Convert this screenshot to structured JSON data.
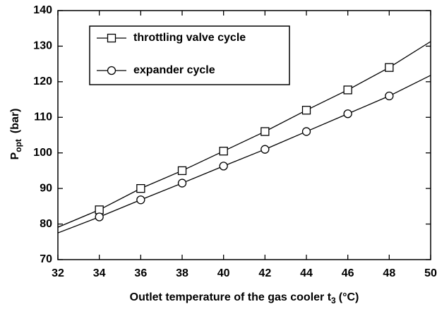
{
  "chart_data": {
    "type": "line",
    "x_label": {
      "text": "Outlet temperature of the gas cooler t",
      "subscript": "3",
      "unit": "(°C)"
    },
    "y_label": {
      "text": "P",
      "subscript": "opt",
      "unit": "(bar)"
    },
    "x": [
      32,
      34,
      36,
      38,
      40,
      42,
      44,
      46,
      48,
      50
    ],
    "series": [
      {
        "name": "throttling valve cycle",
        "marker": "square",
        "color": "#000000",
        "values": [
          79.1,
          84,
          90,
          95,
          100.5,
          106,
          112,
          117.7,
          124,
          131.3
        ]
      },
      {
        "name": "expander cycle",
        "marker": "circle",
        "color": "#000000",
        "values": [
          77.5,
          82,
          86.8,
          91.5,
          96.3,
          101,
          106,
          111,
          116,
          121.8
        ]
      }
    ],
    "xlim": [
      32,
      50
    ],
    "xticks": [
      32,
      34,
      36,
      38,
      40,
      42,
      44,
      46,
      48,
      50
    ],
    "ylim": [
      70,
      140
    ],
    "yticks": [
      70,
      80,
      90,
      100,
      110,
      120,
      130,
      140
    ],
    "legend": "upper left",
    "grid": false
  }
}
